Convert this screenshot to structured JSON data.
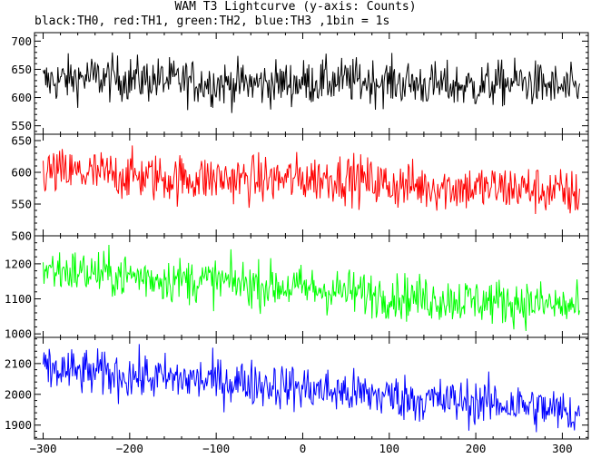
{
  "chart_data": {
    "type": "line",
    "title": "WAM T3 Lightcurve (y-axis: Counts)",
    "subtitle": "black:TH0, red:TH1, green:TH2, blue:TH3 ,1bin = 1s",
    "xlim": [
      -310,
      330
    ],
    "x_ticks": [
      -300,
      -200,
      -100,
      0,
      100,
      200,
      300
    ],
    "x_start": -300,
    "x_end": 320,
    "bin": 1,
    "grid": false,
    "panels": [
      {
        "name": "TH0",
        "color": "#000000",
        "ylim": [
          535,
          715
        ],
        "y_ticks": [
          550,
          600,
          650,
          700
        ],
        "series": [
          {
            "x": -300,
            "y": 628
          },
          {
            "x": -250,
            "y": 636
          },
          {
            "x": -200,
            "y": 633
          },
          {
            "x": -150,
            "y": 630
          },
          {
            "x": -100,
            "y": 625
          },
          {
            "x": -50,
            "y": 624
          },
          {
            "x": 0,
            "y": 627
          },
          {
            "x": 50,
            "y": 630
          },
          {
            "x": 100,
            "y": 628
          },
          {
            "x": 150,
            "y": 622
          },
          {
            "x": 200,
            "y": 620
          },
          {
            "x": 250,
            "y": 628
          },
          {
            "x": 320,
            "y": 612
          }
        ],
        "noise": 40
      },
      {
        "name": "TH1",
        "color": "#ff0000",
        "ylim": [
          500,
          660
        ],
        "y_ticks": [
          500,
          550,
          600,
          650
        ],
        "series": [
          {
            "x": -300,
            "y": 600
          },
          {
            "x": -250,
            "y": 598
          },
          {
            "x": -200,
            "y": 595
          },
          {
            "x": -150,
            "y": 590
          },
          {
            "x": -100,
            "y": 590
          },
          {
            "x": -50,
            "y": 588
          },
          {
            "x": 0,
            "y": 590
          },
          {
            "x": 50,
            "y": 592
          },
          {
            "x": 100,
            "y": 580
          },
          {
            "x": 150,
            "y": 578
          },
          {
            "x": 200,
            "y": 575
          },
          {
            "x": 250,
            "y": 575
          },
          {
            "x": 320,
            "y": 565
          }
        ],
        "noise": 38
      },
      {
        "name": "TH2",
        "color": "#00ff00",
        "ylim": [
          990,
          1280
        ],
        "y_ticks": [
          1000,
          1100,
          1200
        ],
        "series": [
          {
            "x": -300,
            "y": 1185
          },
          {
            "x": -250,
            "y": 1175
          },
          {
            "x": -200,
            "y": 1165
          },
          {
            "x": -150,
            "y": 1155
          },
          {
            "x": -100,
            "y": 1150
          },
          {
            "x": -50,
            "y": 1140
          },
          {
            "x": 0,
            "y": 1130
          },
          {
            "x": 50,
            "y": 1120
          },
          {
            "x": 100,
            "y": 1110
          },
          {
            "x": 150,
            "y": 1100
          },
          {
            "x": 200,
            "y": 1095
          },
          {
            "x": 250,
            "y": 1090
          },
          {
            "x": 320,
            "y": 1075
          }
        ],
        "noise": 65
      },
      {
        "name": "TH3",
        "color": "#0000ff",
        "ylim": [
          1855,
          2185
        ],
        "y_ticks": [
          1900,
          2000,
          2100
        ],
        "series": [
          {
            "x": -300,
            "y": 2080
          },
          {
            "x": -250,
            "y": 2070
          },
          {
            "x": -200,
            "y": 2060
          },
          {
            "x": -150,
            "y": 2050
          },
          {
            "x": -100,
            "y": 2045
          },
          {
            "x": -50,
            "y": 2035
          },
          {
            "x": 0,
            "y": 2020
          },
          {
            "x": 50,
            "y": 2005
          },
          {
            "x": 100,
            "y": 1995
          },
          {
            "x": 150,
            "y": 1980
          },
          {
            "x": 200,
            "y": 1975
          },
          {
            "x": 250,
            "y": 1965
          },
          {
            "x": 320,
            "y": 1935
          }
        ],
        "noise": 75
      }
    ]
  }
}
